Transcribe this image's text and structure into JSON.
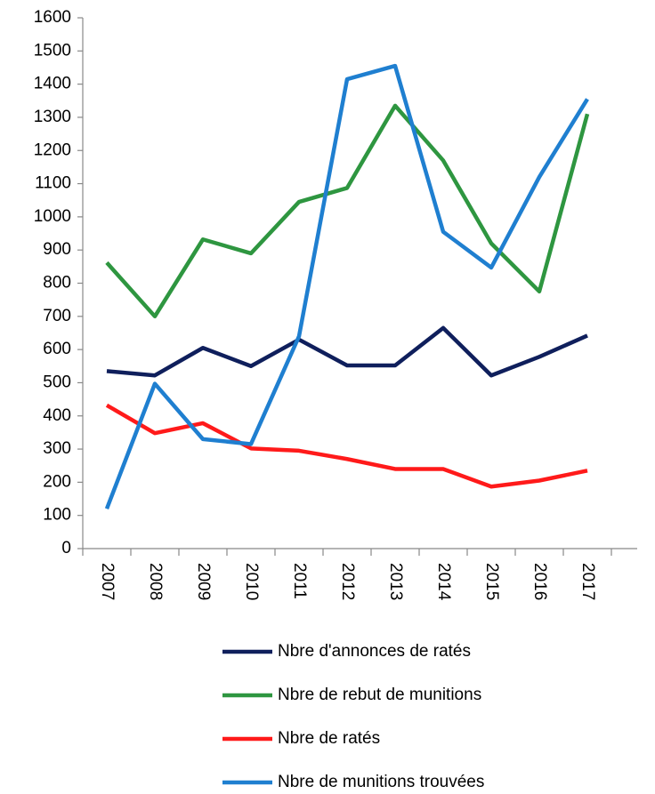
{
  "chart_data": {
    "type": "line",
    "categories": [
      "2007",
      "2008",
      "2009",
      "2010",
      "2011",
      "2012",
      "2013",
      "2014",
      "2015",
      "2016",
      "2017"
    ],
    "series": [
      {
        "name": "Nbre d'annonces de ratés",
        "color": "#0f1f5c",
        "values": [
          535,
          522,
          605,
          550,
          630,
          552,
          552,
          665,
          522,
          578,
          642
        ]
      },
      {
        "name": "Nbre de rebut de munitions",
        "color": "#2e9640",
        "values": [
          862,
          700,
          932,
          890,
          1045,
          1087,
          1335,
          1170,
          920,
          775,
          1310
        ]
      },
      {
        "name": "Nbre de ratés",
        "color": "#ff1a1a",
        "values": [
          432,
          348,
          378,
          302,
          295,
          270,
          240,
          240,
          187,
          205,
          235
        ]
      },
      {
        "name": "Nbre de munitions trouvées",
        "color": "#1f7fd0",
        "values": [
          120,
          497,
          330,
          315,
          640,
          1415,
          1455,
          955,
          847,
          1120,
          1355
        ]
      }
    ],
    "ylim": [
      0,
      1600
    ],
    "yticks": [
      0,
      100,
      200,
      300,
      400,
      500,
      600,
      700,
      800,
      900,
      1000,
      1100,
      1200,
      1300,
      1400,
      1500,
      1600
    ],
    "grid": false,
    "legend": "bottom"
  }
}
